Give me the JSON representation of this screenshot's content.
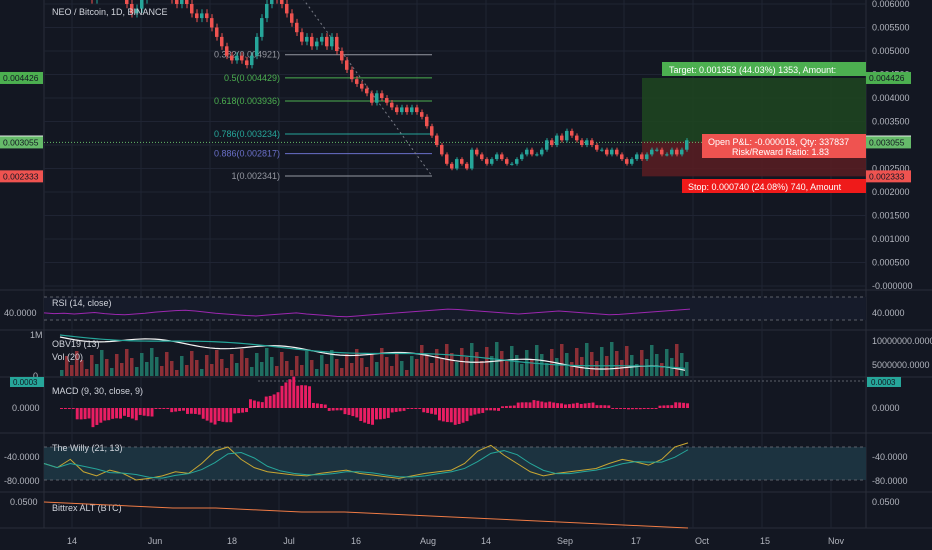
{
  "header": {
    "title": "NEO / Bitcoin, 1D, BINANCE"
  },
  "colors": {
    "background": "#131722",
    "grid": "#1f2433",
    "up": "#26a69a",
    "down": "#ef5350",
    "target_zone": "#1b5e20",
    "stop_zone": "#b71c1c",
    "rsi": "#9c27b0",
    "macd_hist": "#e91e63",
    "willy_fast": "#c8a632",
    "willy_slow": "#26a69a",
    "alt": "#ef7b45",
    "fib_gray": "#9598a1",
    "fib_green": "#4caf50",
    "fib_blue": "#6a70c9"
  },
  "price_axis": {
    "ticks": [
      "0.006000",
      "0.005500",
      "0.005000",
      "0.004500",
      "0.004000",
      "0.003500",
      "0.003000",
      "0.002500",
      "0.002000",
      "0.001500",
      "0.001000",
      "0.000500",
      "-0.000000"
    ],
    "badges": [
      {
        "text": "0.004426",
        "color": "#4caf50",
        "value": 0.004426
      },
      {
        "text": "0.003073",
        "color": "#ffffff",
        "value": 0.003073
      },
      {
        "text": "0.003055",
        "color": "#66bb6a",
        "value": 0.003055
      },
      {
        "text": "0.002333",
        "color": "#ef5350",
        "value": 0.002333
      }
    ]
  },
  "time_axis": {
    "labels": [
      "14",
      "Jun",
      "18",
      "Jul",
      "16",
      "Aug",
      "14",
      "Sep",
      "17",
      "Oct",
      "15",
      "Nov"
    ]
  },
  "fib_levels": [
    {
      "label": "0.382(0.004921)",
      "value": 0.004921,
      "color": "#9598a1"
    },
    {
      "label": "0.5(0.004429)",
      "value": 0.004429,
      "color": "#4caf50"
    },
    {
      "label": "0.618(0.003936)",
      "value": 0.003936,
      "color": "#4caf50"
    },
    {
      "label": "0.786(0.003234)",
      "value": 0.003234,
      "color": "#26a69a"
    },
    {
      "label": "0.886(0.002817)",
      "value": 0.002817,
      "color": "#6a70c9"
    },
    {
      "label": "1(0.002341)",
      "value": 0.002341,
      "color": "#9598a1"
    }
  ],
  "position": {
    "target_label": "Target: 0.001353 (44.03%) 1353, Amount:",
    "pnl_label": "Open P&L: -0.000018, Qty: 337837",
    "rr_label": "Risk/Reward Ratio: 1.83",
    "stop_label": "Stop: 0.000740 (24.08%) 740, Amount",
    "entry": 0.003073,
    "target": 0.004426,
    "stop": 0.002333
  },
  "rsi": {
    "title": "RSI (14, close)",
    "ticks": [
      "40.0000"
    ],
    "ticks_right": [
      "40.0000"
    ]
  },
  "volume": {
    "title_obv": "OBV19 (13)",
    "title_vol": "Vol (20)",
    "left_label": "1M",
    "left_zero": "0",
    "ticks_right": [
      "10000000.0000",
      "5000000.0000"
    ]
  },
  "macd": {
    "title": "MACD (9, 30, close, 9)",
    "left_badge": "0.0003",
    "right_badge": "0.0003",
    "ticks": [
      "0.0000"
    ],
    "ticks_right": [
      "0.0000"
    ]
  },
  "willy": {
    "title": "The Willy (21, 13)",
    "ticks": [
      "-40.0000",
      "-80.0000"
    ],
    "ticks_right": [
      "-40.0000",
      "-80.0000"
    ]
  },
  "alt": {
    "title": "Bittrex ALT (BTC)",
    "ticks": [
      "0.0500"
    ],
    "ticks_right": [
      "0.0500"
    ]
  },
  "chart_data": {
    "type": "candlestick",
    "title": "NEO / Bitcoin, 1D, BINANCE",
    "x_range": [
      "May 8",
      "Nov 10"
    ],
    "ylim": [
      0,
      0.006
    ],
    "close": [
      0.0068,
      0.0066,
      0.0065,
      0.0064,
      0.0063,
      0.0062,
      0.0061,
      0.0062,
      0.0064,
      0.0063,
      0.0066,
      0.0064,
      0.0063,
      0.006,
      0.0058,
      0.0059,
      0.0061,
      0.0063,
      0.0065,
      0.0066,
      0.0064,
      0.0063,
      0.0061,
      0.006,
      0.0062,
      0.006,
      0.0058,
      0.0057,
      0.0058,
      0.0057,
      0.0055,
      0.0053,
      0.0051,
      0.0049,
      0.0048,
      0.0049,
      0.0048,
      0.0047,
      0.0049,
      0.0053,
      0.0057,
      0.006,
      0.0063,
      0.0061,
      0.006,
      0.0058,
      0.0056,
      0.0054,
      0.0052,
      0.0053,
      0.0051,
      0.0052,
      0.0053,
      0.0051,
      0.0053,
      0.005,
      0.0048,
      0.0046,
      0.0044,
      0.0043,
      0.0042,
      0.0041,
      0.0039,
      0.0041,
      0.004,
      0.0039,
      0.0038,
      0.0037,
      0.0038,
      0.0037,
      0.0038,
      0.0037,
      0.0036,
      0.0034,
      0.0032,
      0.003,
      0.0028,
      0.0026,
      0.0025,
      0.0027,
      0.0026,
      0.0025,
      0.0029,
      0.0028,
      0.0027,
      0.0026,
      0.0027,
      0.0028,
      0.0027,
      0.0026,
      0.0026,
      0.0027,
      0.0028,
      0.0029,
      0.0028,
      0.0028,
      0.0029,
      0.0031,
      0.003,
      0.0032,
      0.0031,
      0.0033,
      0.0032,
      0.0031,
      0.003,
      0.0031,
      0.003,
      0.0029,
      0.0029,
      0.0028,
      0.0029,
      0.0028,
      0.0027,
      0.0026,
      0.0027,
      0.0028,
      0.0027,
      0.0028,
      0.0029,
      0.0029,
      0.0028,
      0.0028,
      0.0029,
      0.0028,
      0.0029,
      0.0031
    ],
    "series": [
      {
        "name": "RSI (14, close)",
        "values": [
          45,
          43,
          44,
          42,
          44,
          46,
          43,
          41,
          40,
          42,
          44,
          47,
          49,
          51,
          52,
          50,
          47,
          44,
          42,
          40,
          38,
          37,
          39,
          41,
          43,
          45,
          42,
          40,
          38,
          36,
          35,
          37,
          39,
          41,
          43,
          45,
          47,
          49,
          51,
          53,
          55,
          54,
          52,
          50,
          48,
          46,
          44,
          42,
          44,
          46,
          48,
          50,
          48,
          46,
          44,
          42,
          40,
          41,
          43,
          45,
          47,
          49,
          51,
          53,
          55
        ]
      },
      {
        "name": "MACD (9, 30, close, 9)",
        "values": [
          0,
          -4e-05,
          -8e-05,
          -9e-05,
          -6e-05,
          -3e-05,
          0,
          -2e-05,
          -5e-05,
          -7e-05,
          -5e-05,
          -2e-05,
          5e-05,
          0.0001,
          0.00012,
          8e-05,
          2e-05,
          -2e-05,
          -5e-05,
          -6e-05,
          -4e-05,
          -2e-05,
          0,
          -3e-05,
          -5e-05,
          -6e-05,
          -4e-05,
          -2e-05,
          1e-05,
          2e-05,
          3e-05,
          4e-05,
          3e-05,
          2e-05,
          1e-05,
          0,
          -1e-05,
          0,
          1e-05,
          2e-05
        ]
      },
      {
        "name": "The Willy (21, 13)",
        "values": [
          -60,
          -65,
          -55,
          -70,
          -75,
          -68,
          -72,
          -80,
          -78,
          -75,
          -70,
          -72,
          -60,
          -45,
          -40,
          -55,
          -65,
          -70,
          -72,
          -74,
          -75,
          -72,
          -70,
          -68,
          -72,
          -74,
          -76,
          -78,
          -75,
          -72,
          -70,
          -68,
          -60,
          -45,
          -38,
          -50,
          -60,
          -70,
          -75,
          -72,
          -70,
          -68,
          -66,
          -60,
          -55,
          -58,
          -62,
          -55,
          -40,
          -35
        ]
      },
      {
        "name": "Bittrex ALT (BTC)",
        "values": [
          0.052,
          0.051,
          0.05,
          0.049,
          0.049,
          0.048,
          0.047,
          0.047,
          0.046,
          0.045,
          0.044,
          0.043,
          0.042,
          0.041,
          0.04,
          0.039
        ]
      }
    ]
  }
}
